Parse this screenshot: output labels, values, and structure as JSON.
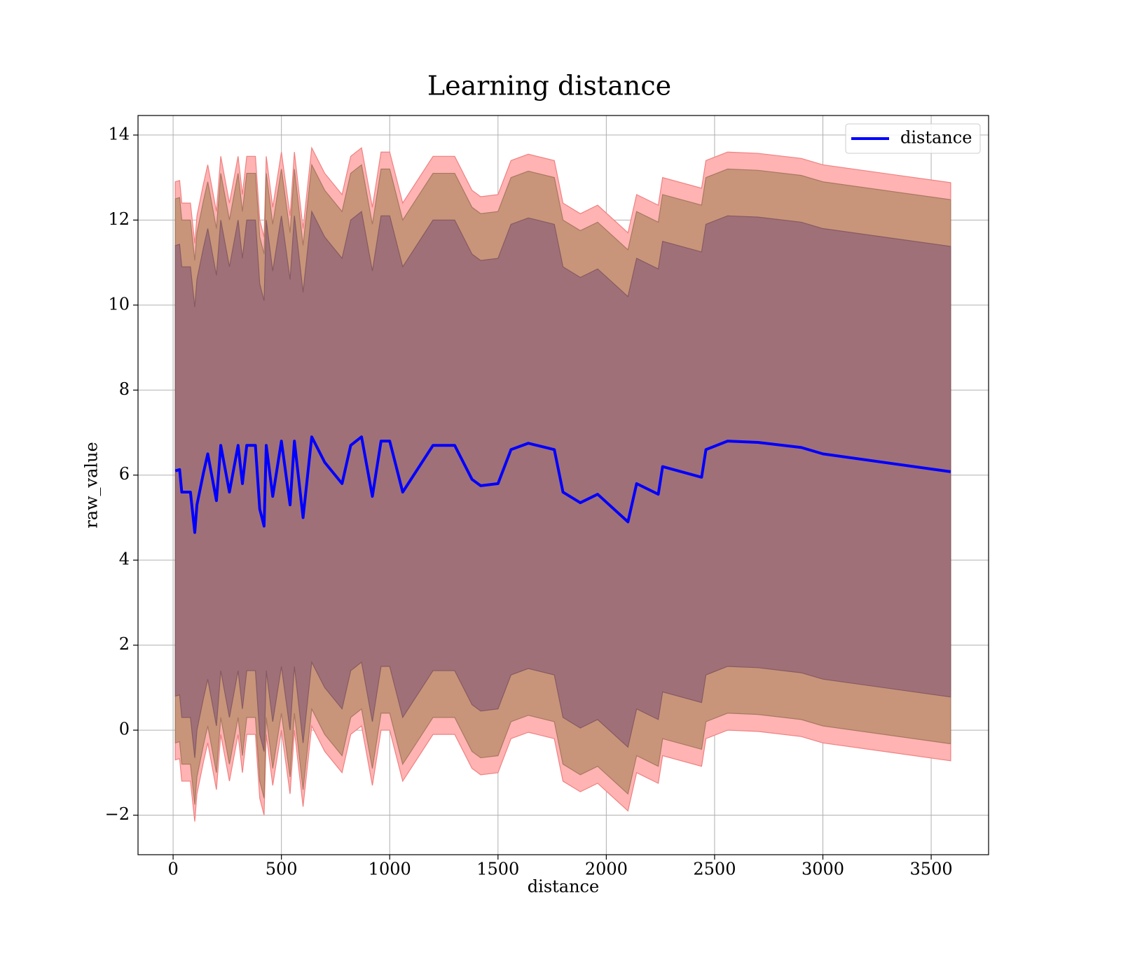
{
  "chart_data": {
    "type": "line",
    "title": "Learning distance",
    "x_label": "distance",
    "y_label": "raw_value",
    "x": [
      10,
      30,
      40,
      80,
      100,
      110,
      140,
      160,
      200,
      220,
      260,
      300,
      320,
      340,
      380,
      400,
      420,
      430,
      460,
      500,
      540,
      560,
      600,
      640,
      700,
      780,
      820,
      870,
      920,
      960,
      1000,
      1060,
      1200,
      1300,
      1380,
      1420,
      1500,
      1560,
      1640,
      1760,
      1800,
      1880,
      1960,
      2100,
      2140,
      2240,
      2260,
      2440,
      2460,
      2560,
      2700,
      2900,
      3000,
      3590
    ],
    "series": [
      {
        "name": "distance",
        "color": "#0000ff",
        "values": [
          6.1,
          6.13,
          5.6,
          5.6,
          4.65,
          5.3,
          6.05,
          6.5,
          5.4,
          6.7,
          5.6,
          6.7,
          5.8,
          6.7,
          6.7,
          5.2,
          4.8,
          6.7,
          5.5,
          6.8,
          5.3,
          6.8,
          5.0,
          6.9,
          6.3,
          5.8,
          6.7,
          6.9,
          5.5,
          6.8,
          6.8,
          5.6,
          6.7,
          6.7,
          5.9,
          5.75,
          5.8,
          6.6,
          6.75,
          6.6,
          5.6,
          5.35,
          5.55,
          4.9,
          5.8,
          5.55,
          6.2,
          5.95,
          6.6,
          6.8,
          6.77,
          6.65,
          6.5,
          6.08
        ]
      }
    ],
    "bands": [
      {
        "color": "#ffb3b3",
        "edge": "#f08080",
        "upper": [
          12.9,
          12.93,
          12.4,
          12.4,
          11.45,
          12.1,
          12.85,
          13.3,
          12.2,
          13.5,
          12.4,
          13.5,
          12.6,
          13.5,
          13.5,
          12,
          11.6,
          13.5,
          12.3,
          13.6,
          12.1,
          13.6,
          11.8,
          13.7,
          13.1,
          12.6,
          13.5,
          13.7,
          12.3,
          13.6,
          13.6,
          12.4,
          13.5,
          13.5,
          12.7,
          12.55,
          12.6,
          13.4,
          13.55,
          13.4,
          12.4,
          12.15,
          12.35,
          11.7,
          12.6,
          12.35,
          13,
          12.75,
          13.4,
          13.6,
          13.57,
          13.45,
          13.3,
          12.88
        ],
        "lower": [
          -0.7,
          -0.67,
          -1.2,
          -1.2,
          -2.15,
          -1.5,
          -0.75,
          -0.3,
          -1.4,
          -0.1,
          -1.2,
          -0.1,
          -1,
          -0.1,
          -0.1,
          -1.6,
          -2,
          -0.1,
          -1.3,
          0,
          -1.5,
          0,
          -1.8,
          0.1,
          -0.5,
          -1,
          -0.1,
          0.1,
          -1.3,
          0,
          0,
          -1.2,
          -0.1,
          -0.1,
          -0.9,
          -1.05,
          -1,
          -0.2,
          -0.05,
          -0.2,
          -1.2,
          -1.45,
          -1.25,
          -1.9,
          -1,
          -1.25,
          -0.6,
          -0.85,
          -0.2,
          0,
          -0.03,
          -0.15,
          -0.3,
          -0.72
        ]
      },
      {
        "color": "#c8957a",
        "edge": "#a87860",
        "upper": [
          12.5,
          12.53,
          12,
          12,
          11.05,
          11.7,
          12.45,
          12.9,
          11.8,
          13.1,
          12,
          13.1,
          12.2,
          13.1,
          13.1,
          11.6,
          11.2,
          13.1,
          11.9,
          13.2,
          11.7,
          13.2,
          11.4,
          13.3,
          12.7,
          12.2,
          13.1,
          13.3,
          11.9,
          13.2,
          13.2,
          12,
          13.1,
          13.1,
          12.3,
          12.15,
          12.2,
          13,
          13.15,
          13,
          12,
          11.75,
          11.95,
          11.3,
          12.2,
          11.95,
          12.6,
          12.35,
          13,
          13.2,
          13.17,
          13.05,
          12.9,
          12.48
        ],
        "lower": [
          -0.3,
          -0.27,
          -0.8,
          -0.8,
          -1.75,
          -1.1,
          -0.35,
          0.1,
          -1,
          0.3,
          -0.8,
          0.3,
          -0.6,
          0.3,
          0.3,
          -1.2,
          -1.6,
          0.3,
          -0.9,
          0.4,
          -1.1,
          0.4,
          -1.4,
          0.5,
          -0.1,
          -0.6,
          0.3,
          0.5,
          -0.9,
          0.4,
          0.4,
          -0.8,
          0.3,
          0.3,
          -0.5,
          -0.65,
          -0.6,
          0.2,
          0.35,
          0.2,
          -0.8,
          -1.05,
          -0.85,
          -1.5,
          -0.6,
          -0.85,
          -0.2,
          -0.45,
          0.2,
          0.4,
          0.37,
          0.25,
          0.1,
          -0.32
        ]
      },
      {
        "color": "#a07078",
        "edge": "#855a63",
        "upper": [
          11.4,
          11.43,
          10.9,
          10.9,
          9.95,
          10.6,
          11.35,
          11.8,
          10.7,
          12,
          10.9,
          12,
          11.1,
          12,
          12,
          10.5,
          10.1,
          12,
          10.8,
          12.1,
          10.6,
          12.1,
          10.3,
          12.2,
          11.6,
          11.1,
          12,
          12.2,
          10.8,
          12.1,
          12.1,
          10.9,
          12,
          12,
          11.2,
          11.05,
          11.1,
          11.9,
          12.05,
          11.9,
          10.9,
          10.65,
          10.85,
          10.2,
          11.1,
          10.85,
          11.5,
          11.25,
          11.9,
          12.1,
          12.07,
          11.95,
          11.8,
          11.38
        ],
        "lower": [
          0.8,
          0.83,
          0.3,
          0.3,
          -0.65,
          0,
          0.75,
          1.2,
          0.1,
          1.4,
          0.3,
          1.4,
          0.5,
          1.4,
          1.4,
          -0.1,
          -0.5,
          1.4,
          0.2,
          1.5,
          0,
          1.5,
          -0.3,
          1.6,
          1,
          0.5,
          1.4,
          1.6,
          0.2,
          1.5,
          1.5,
          0.3,
          1.4,
          1.4,
          0.6,
          0.45,
          0.5,
          1.3,
          1.45,
          1.3,
          0.3,
          0.05,
          0.25,
          -0.4,
          0.5,
          0.25,
          0.9,
          0.65,
          1.3,
          1.5,
          1.47,
          1.35,
          1.2,
          0.78
        ]
      }
    ],
    "xlim": [
      -162,
      3765
    ],
    "ylim": [
      -2.93,
      14.46
    ],
    "xticks": [
      0,
      500,
      1000,
      1500,
      2000,
      2500,
      3000,
      3500
    ],
    "yticks": [
      {
        "value": -2,
        "label": "−2"
      },
      0,
      2,
      4,
      6,
      8,
      10,
      12,
      14
    ],
    "grid": true,
    "legend": "upper right"
  }
}
